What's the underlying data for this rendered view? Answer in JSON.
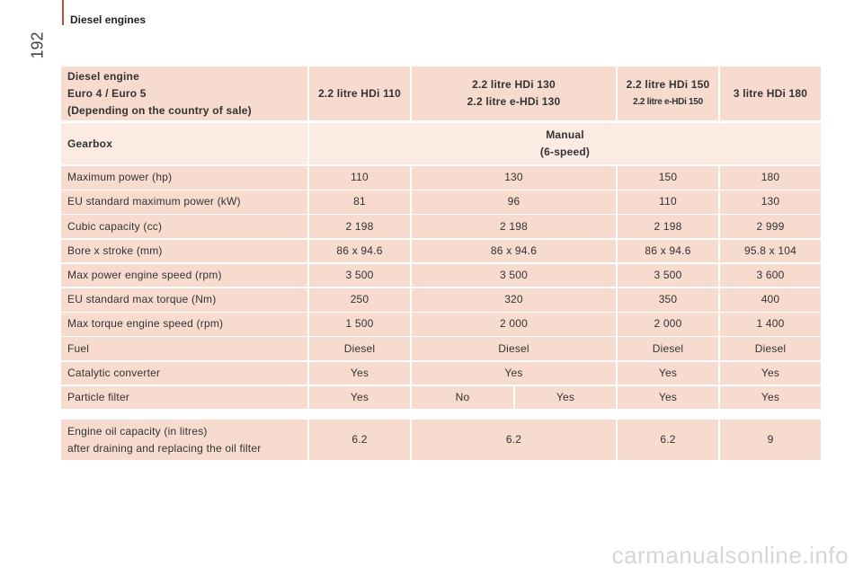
{
  "header": {
    "section": "Diesel engines",
    "page_number": "192"
  },
  "table": {
    "columns": [
      [
        "Diesel engine",
        "Euro 4 / Euro 5",
        "(Depending on the country of sale)"
      ],
      [
        "2.2 litre HDi 110"
      ],
      [
        "2.2 litre HDi 130",
        "2.2 litre e-HDi 130"
      ],
      [
        "2.2 litre HDi 150",
        "2.2 litre e-HDi 150"
      ],
      [
        "3 litre HDi 180"
      ]
    ],
    "gearbox": {
      "label": "Gearbox",
      "value": [
        "Manual",
        "(6-speed)"
      ]
    },
    "rows": [
      {
        "label": "Maximum power (hp)",
        "values": [
          "110",
          "130",
          "150",
          "180"
        ]
      },
      {
        "label": "EU standard maximum power (kW)",
        "values": [
          "81",
          "96",
          "110",
          "130"
        ]
      },
      {
        "label": "Cubic capacity (cc)",
        "values": [
          "2 198",
          "2 198",
          "2 198",
          "2 999"
        ]
      },
      {
        "label": "Bore x stroke (mm)",
        "values": [
          "86 x 94.6",
          "86 x 94.6",
          "86 x 94.6",
          "95.8 x 104"
        ]
      },
      {
        "label": "Max power engine speed (rpm)",
        "values": [
          "3 500",
          "3 500",
          "3 500",
          "3 600"
        ]
      },
      {
        "label": "EU standard max torque (Nm)",
        "values": [
          "250",
          "320",
          "350",
          "400"
        ]
      },
      {
        "label": "Max torque engine speed (rpm)",
        "values": [
          "1 500",
          "2 000",
          "2 000",
          "1 400"
        ]
      },
      {
        "label": "Fuel",
        "values": [
          "Diesel",
          "Diesel",
          "Diesel",
          "Diesel"
        ]
      },
      {
        "label": "Catalytic converter",
        "values": [
          "Yes",
          "Yes",
          "Yes",
          "Yes"
        ]
      },
      {
        "label": "Particle filter",
        "values": [
          "Yes",
          "No",
          "Yes",
          "Yes",
          "Yes"
        ]
      }
    ],
    "oil": {
      "label": [
        "Engine oil capacity (in litres)",
        "after draining and replacing the oil filter"
      ],
      "values": [
        "6.2",
        "6.2",
        "6.2",
        "9"
      ]
    }
  },
  "footer": {
    "watermark": "carmanualsonline.info"
  }
}
